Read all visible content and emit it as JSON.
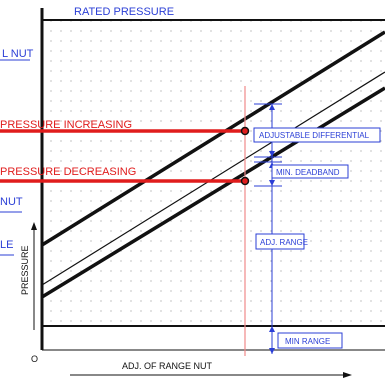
{
  "diagram": {
    "labels": {
      "rated_pressure": "RATED PRESSURE",
      "nut_top": "L  NUT",
      "pressure_increasing": "PRESSURE INCREASING",
      "pressure_decreasing": "PRESSURE DECREASING",
      "nut_mid": "NUT",
      "le": "LE",
      "adjustable_differential": "ADJUSTABLE DIFFERENTIAL",
      "min_deadband": "MIN. DEADBAND",
      "adj_range": "ADJ. RANGE",
      "min_range": "MIN RANGE",
      "y_axis": "PRESSURE",
      "x_axis": "ADJ. OF RANGE NUT",
      "origin": "O"
    },
    "colors": {
      "blue": "#2b3fd6",
      "red": "#e01c1c",
      "black": "#111111",
      "grid_dot": "#9a9a9a",
      "marker_line": "#f08a8a"
    }
  }
}
